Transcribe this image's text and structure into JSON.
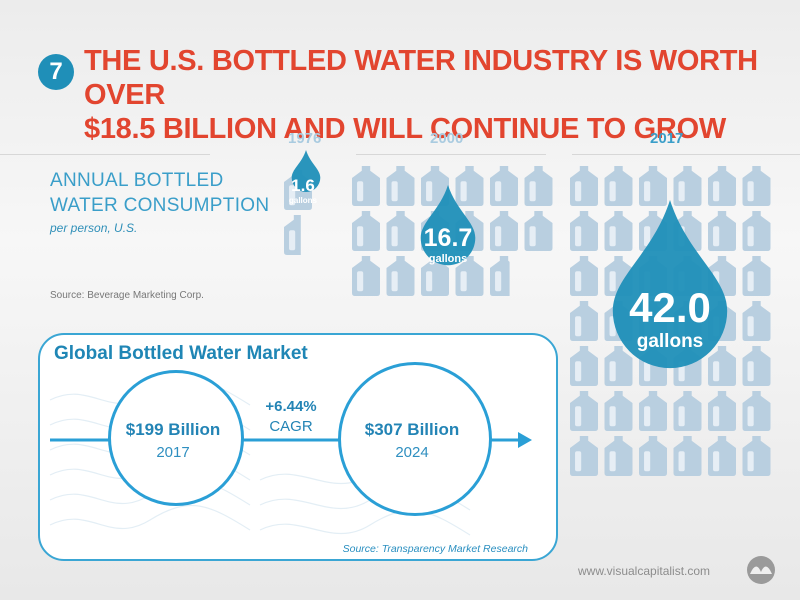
{
  "header": {
    "badge_number": "7",
    "title_line1": "THE U.S. BOTTLED WATER INDUSTRY IS WORTH OVER",
    "title_line2": "$18.5 BILLION AND WILL CONTINUE TO GROW"
  },
  "consumption": {
    "title_line1": "ANNUAL BOTTLED",
    "title_line2": "WATER CONSUMPTION",
    "subtitle": "per person, U.S.",
    "source": "Source: Beverage Marketing Corp."
  },
  "chart_data": {
    "type": "pictogram",
    "unit": "gallons",
    "categories": [
      "1976",
      "2000",
      "2017"
    ],
    "values": [
      1.6,
      16.7,
      42.0
    ],
    "value_labels": [
      "1.6",
      "16.7",
      "42.0"
    ],
    "icon": "gallon-jug-icon",
    "color": "#1f8fb8"
  },
  "market": {
    "title": "Global Bottled Water Market",
    "start_value": "$199 Billion",
    "start_year": "2017",
    "growth": "+6.44%",
    "growth_label": "CAGR",
    "end_value": "$307 Billion",
    "end_year": "2024",
    "source": "Source: Transparency Market Research"
  },
  "footer": {
    "url": "www.visualcapitalist.com",
    "logo_icon": "visual-capitalist-logo-icon"
  },
  "colors": {
    "accent_red": "#e2452f",
    "accent_blue": "#1f8fb8",
    "jug": "#b9cfe0"
  }
}
